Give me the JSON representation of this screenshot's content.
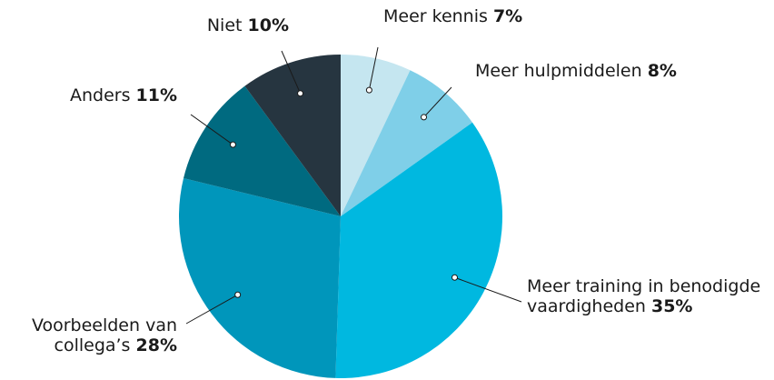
{
  "chart_data": {
    "type": "pie",
    "categories": [
      "Meer kennis",
      "Meer hulpmiddelen",
      "Meer training in benodigde vaardigheden",
      "Voorbeelden van collega’s",
      "Anders",
      "Niet"
    ],
    "values": [
      7,
      8,
      35,
      28,
      11,
      10
    ],
    "value_labels": [
      "7%",
      "8%",
      "35%",
      "28%",
      "11%",
      "10%"
    ],
    "colors": [
      "#c5e6f0",
      "#7fcfe8",
      "#00b8e0",
      "#0096bb",
      "#006a80",
      "#263540"
    ]
  }
}
